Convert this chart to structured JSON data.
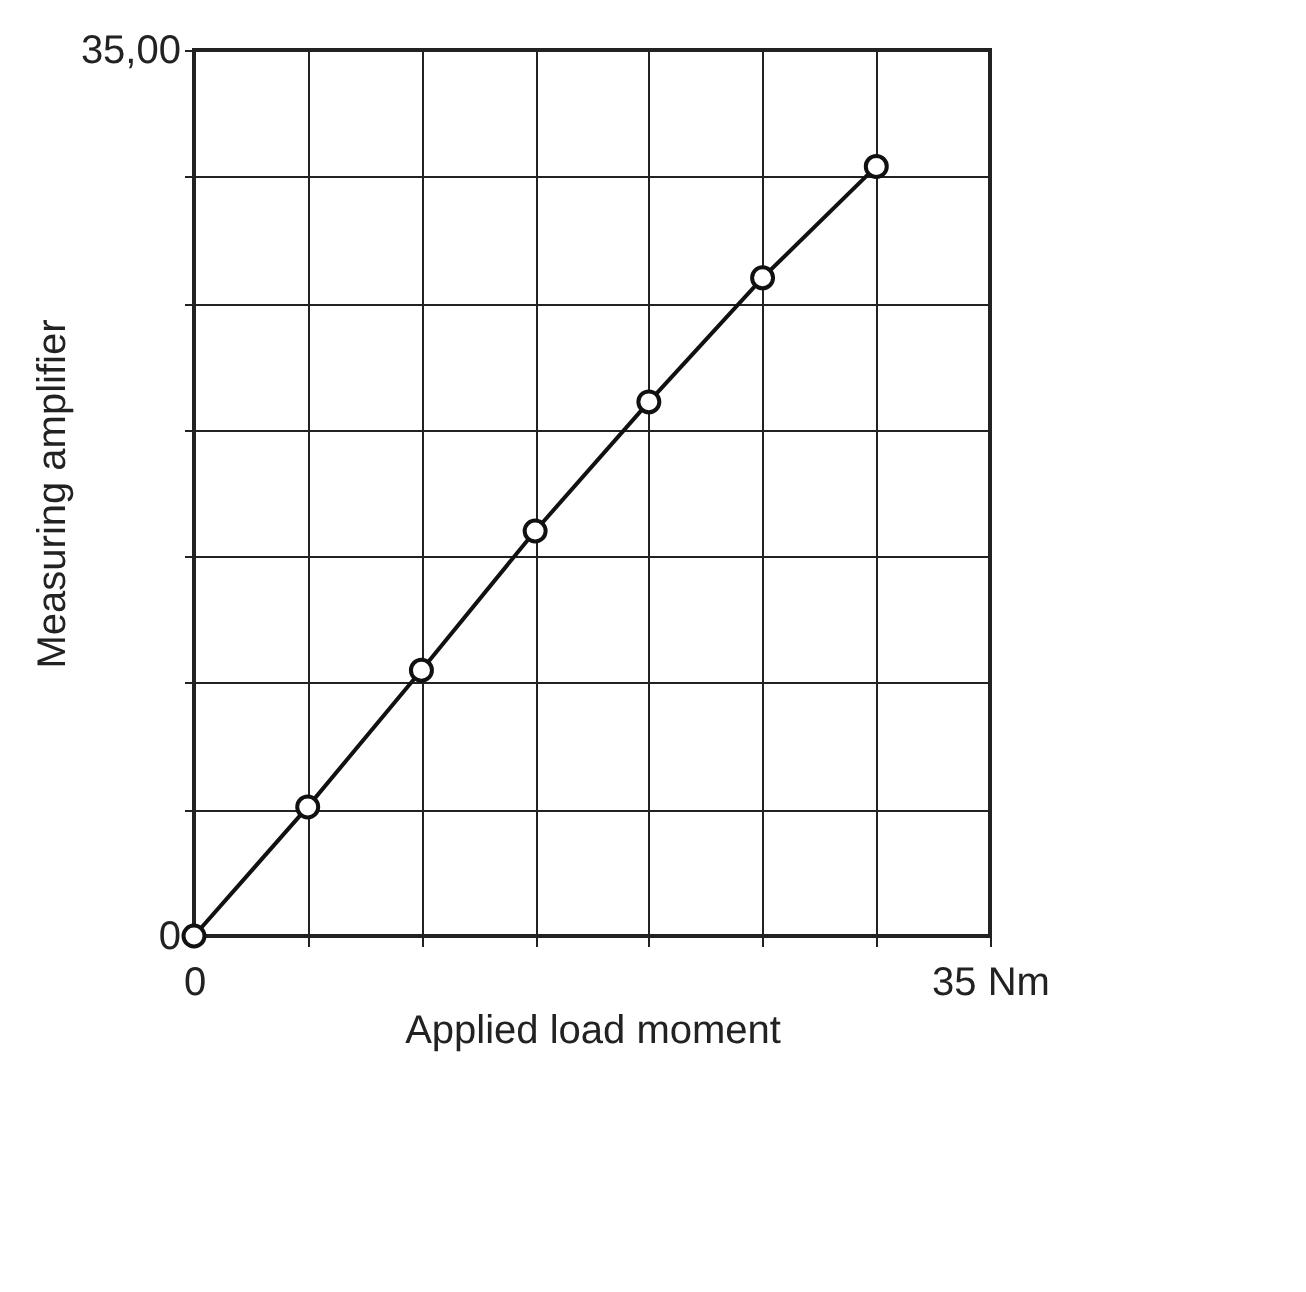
{
  "chart_data": {
    "type": "line",
    "xlabel": "Applied load moment",
    "ylabel": "Measuring amplifier",
    "x": [
      0,
      5,
      10,
      15,
      20,
      25,
      30
    ],
    "series": [
      {
        "color": "#111111",
        "values": [
          0,
          5.1,
          10.5,
          16,
          21.1,
          26,
          30.4
        ]
      }
    ],
    "xlim": [
      0,
      35
    ],
    "ylim": [
      0,
      35
    ],
    "xticks": [
      0,
      {
        "value": 5,
        "label": null
      },
      {
        "value": 10,
        "label": null
      },
      {
        "value": 15,
        "label": null
      },
      {
        "value": 20,
        "label": null
      },
      {
        "value": 25,
        "label": null
      },
      {
        "value": 30,
        "label": null
      },
      {
        "value": 35,
        "label": "35 Nm"
      }
    ],
    "yticks": [
      0,
      {
        "value": 5,
        "label": null
      },
      {
        "value": 10,
        "label": null
      },
      {
        "value": 15,
        "label": null
      },
      {
        "value": 20,
        "label": null
      },
      {
        "value": 25,
        "label": null
      },
      {
        "value": 30,
        "label": null
      },
      {
        "value": 35,
        "label": "35,00"
      }
    ],
    "grid": true,
    "marker": "circle",
    "line_style": "solid"
  }
}
